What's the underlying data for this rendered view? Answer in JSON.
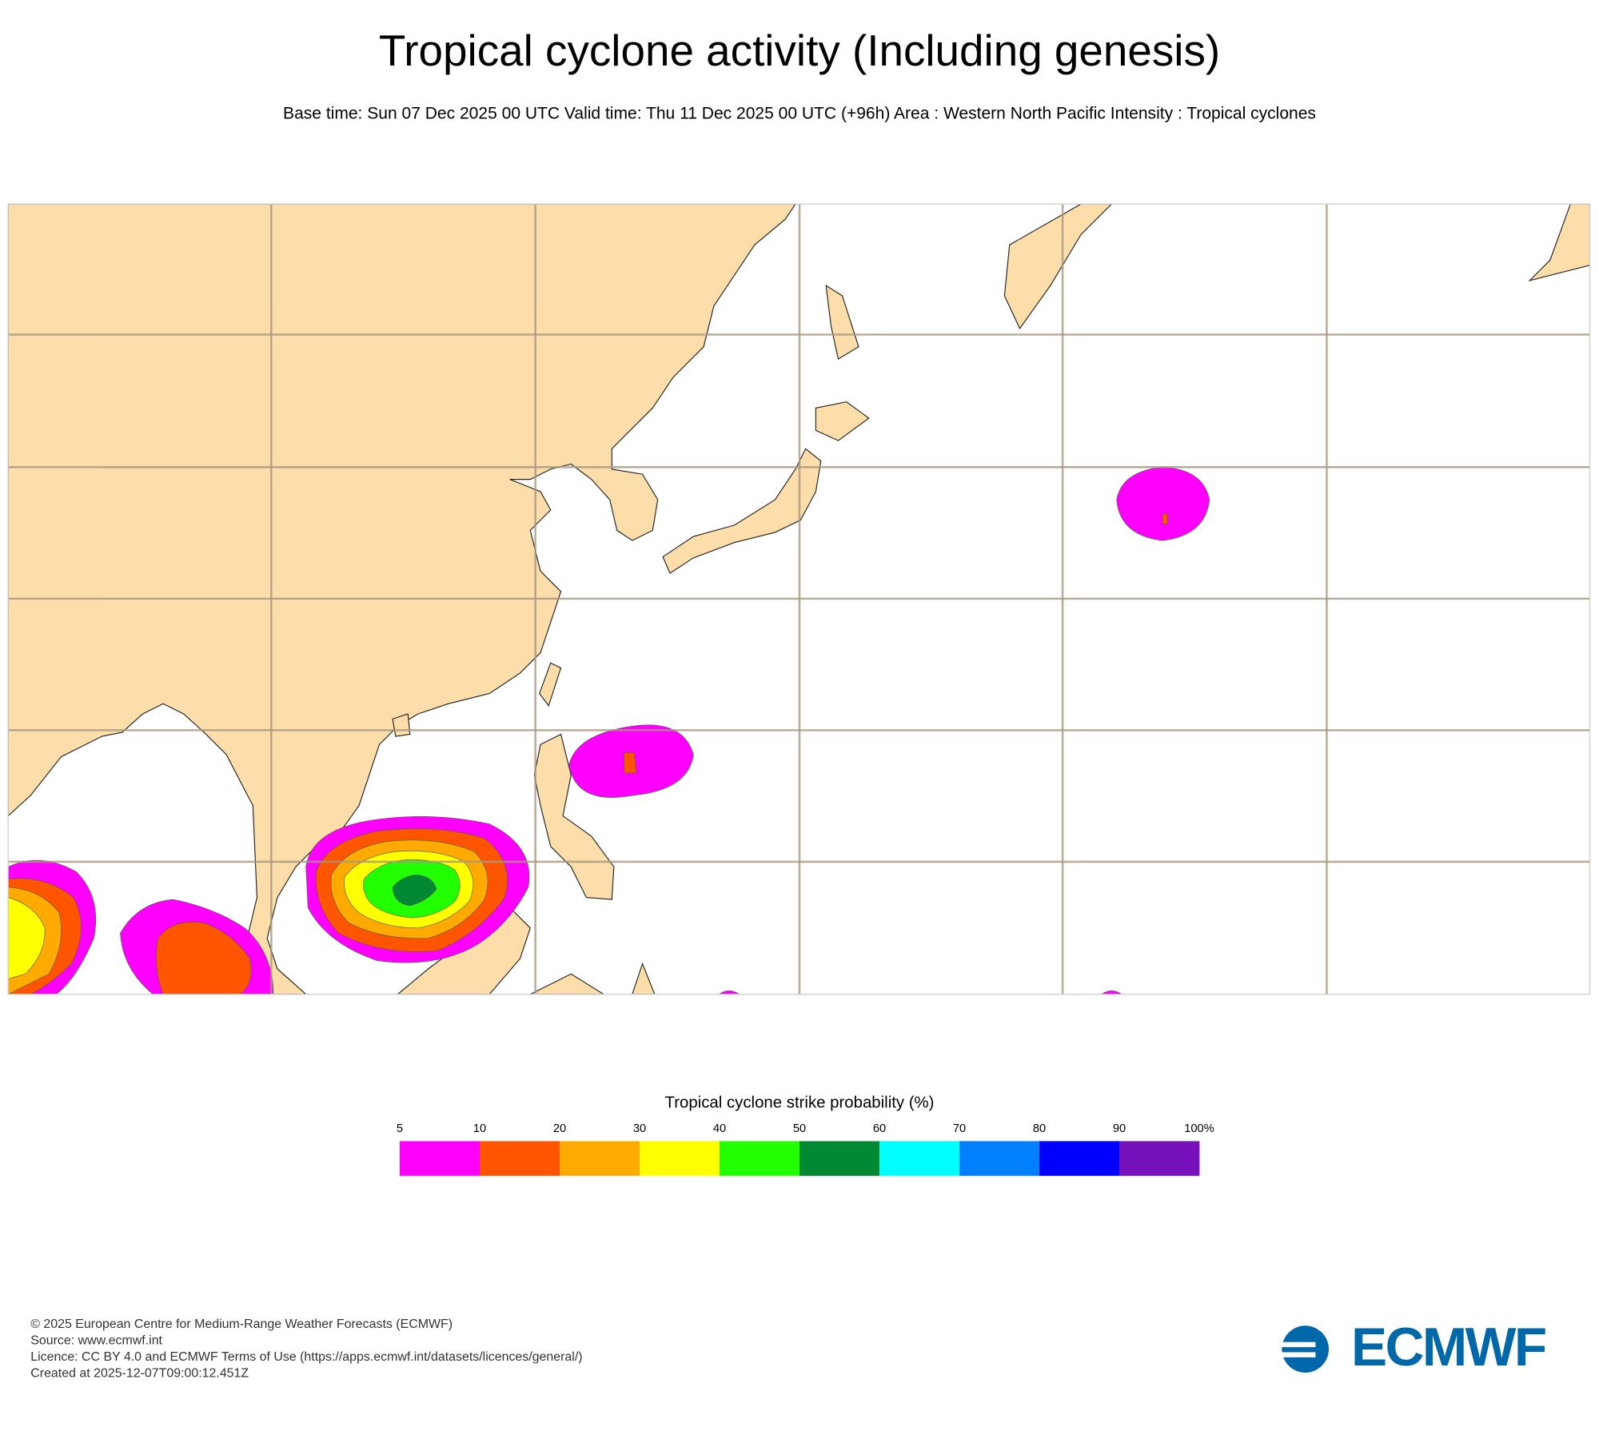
{
  "header": {
    "title": "Tropical cyclone activity (Including genesis)",
    "subtitle": "Base time: Sun 07 Dec 2025 00 UTC Valid time: Thu 11 Dec 2025 00 UTC (+96h) Area : Western North Pacific Intensity : Tropical cyclones"
  },
  "legend": {
    "title": "Tropical cyclone strike probability (%)",
    "ticks": [
      5,
      10,
      20,
      30,
      40,
      50,
      60,
      70,
      80,
      90,
      {
        "value": 100,
        "label": "100%"
      }
    ],
    "colors": [
      "#ff00ff",
      "#ff5500",
      "#ffaa00",
      "#ffff00",
      "#22ff00",
      "#008833",
      "#00ffff",
      "#007fff",
      "#0000ff",
      "#7711bb"
    ]
  },
  "footer": {
    "lines": [
      "© 2025 European Centre for Medium-Range Weather Forecasts (ECMWF)",
      "Source: www.ecmwf.int",
      "Licence: CC BY 4.0 and ECMWF Terms of Use (https://apps.ecmwf.int/datasets/licences/general/)",
      "Created at 2025-12-07T09:00:12.451Z"
    ]
  },
  "logo": {
    "text": "ECMWF"
  }
}
